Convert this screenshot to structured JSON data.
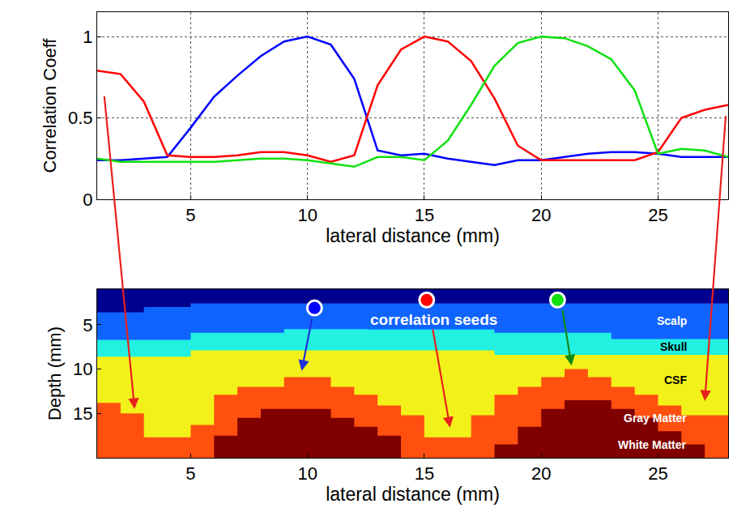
{
  "chart_data": [
    {
      "type": "line",
      "x": [
        1,
        2,
        3,
        4,
        5,
        6,
        7,
        8,
        9,
        10,
        11,
        12,
        13,
        14,
        15,
        16,
        17,
        18,
        19,
        20,
        21,
        22,
        23,
        24,
        25,
        26,
        27,
        28
      ],
      "series": [
        {
          "color": "#0000ff",
          "values": [
            0.24,
            0.24,
            0.25,
            0.26,
            0.44,
            0.63,
            0.76,
            0.88,
            0.97,
            1.0,
            0.95,
            0.74,
            0.3,
            0.27,
            0.28,
            0.25,
            0.23,
            0.21,
            0.24,
            0.24,
            0.26,
            0.28,
            0.29,
            0.29,
            0.28,
            0.26,
            0.26,
            0.26
          ]
        },
        {
          "color": "#ff0000",
          "values": [
            0.79,
            0.77,
            0.6,
            0.27,
            0.26,
            0.26,
            0.27,
            0.29,
            0.29,
            0.27,
            0.23,
            0.27,
            0.7,
            0.92,
            1.0,
            0.97,
            0.85,
            0.62,
            0.33,
            0.24,
            0.24,
            0.24,
            0.24,
            0.24,
            0.29,
            0.5,
            0.55,
            0.58
          ]
        },
        {
          "color": "#10e010",
          "values": [
            0.25,
            0.23,
            0.23,
            0.23,
            0.23,
            0.23,
            0.24,
            0.25,
            0.25,
            0.24,
            0.22,
            0.2,
            0.26,
            0.26,
            0.24,
            0.36,
            0.58,
            0.82,
            0.96,
            1.0,
            0.99,
            0.94,
            0.86,
            0.67,
            0.28,
            0.31,
            0.3,
            0.26
          ]
        }
      ],
      "xlabel": "lateral distance (mm)",
      "ylabel": "Correlation Coeff",
      "xlim": [
        1,
        28
      ],
      "ylim": [
        0,
        1.15
      ],
      "xticks": [
        5,
        10,
        15,
        20,
        25
      ],
      "yticks": [
        0,
        0.5,
        1
      ],
      "grid": true
    },
    {
      "type": "area",
      "x": [
        1,
        2,
        3,
        4,
        5,
        6,
        7,
        8,
        9,
        10,
        11,
        12,
        13,
        14,
        15,
        16,
        17,
        18,
        19,
        20,
        21,
        22,
        23,
        24,
        25,
        26,
        27,
        28
      ],
      "layers": [
        {
          "color": "#00008f",
          "bottom": [
            3.6,
            3.6,
            3.0,
            3.0,
            2.6,
            2.6,
            2.6,
            2.6,
            2.6,
            2.6,
            2.6,
            2.6,
            2.6,
            2.6,
            2.6,
            2.6,
            2.6,
            2.6,
            2.6,
            2.6,
            2.6,
            2.6,
            2.6,
            2.6,
            2.6,
            2.6,
            2.6,
            2.6
          ]
        },
        {
          "name": "Scalp",
          "color": "#0f64ff",
          "bottom": [
            6.7,
            6.7,
            6.7,
            6.7,
            5.9,
            5.9,
            5.9,
            5.9,
            5.5,
            5.5,
            5.5,
            5.5,
            5.5,
            5.5,
            5.5,
            5.5,
            5.5,
            5.9,
            5.9,
            5.9,
            5.9,
            5.9,
            6.6,
            6.6,
            6.6,
            6.6,
            6.6,
            6.6
          ]
        },
        {
          "name": "Skull",
          "color": "#22f0e0",
          "bottom": [
            8.6,
            8.6,
            8.6,
            8.6,
            7.9,
            7.9,
            7.9,
            7.9,
            7.9,
            7.9,
            7.9,
            7.9,
            7.9,
            7.9,
            7.9,
            7.9,
            7.9,
            8.4,
            8.4,
            8.4,
            8.4,
            8.4,
            8.4,
            8.4,
            8.4,
            8.4,
            8.4,
            8.4
          ]
        },
        {
          "name": "CSF",
          "color": "#f2f21a",
          "bottom": [
            13.8,
            15.0,
            17.7,
            17.7,
            16.3,
            12.9,
            12.0,
            12.0,
            10.9,
            10.9,
            12.0,
            12.9,
            14.1,
            15.2,
            17.7,
            17.7,
            15.2,
            12.9,
            12.0,
            10.9,
            10.0,
            10.9,
            12.0,
            12.9,
            14.1,
            15.2,
            15.2,
            15.2
          ]
        },
        {
          "name": "Gray Matter",
          "color": "#ff5010",
          "bottom": [
            20,
            20,
            20,
            20,
            20,
            17.5,
            15.5,
            14.5,
            14.5,
            14.5,
            15.5,
            16.5,
            17.5,
            20,
            20,
            20,
            20,
            18.5,
            16.5,
            14.5,
            13.5,
            13.5,
            14.5,
            15.5,
            17.0,
            18.5,
            20,
            20
          ]
        },
        {
          "name": "White Matter",
          "color": "#800000",
          "bottom": [
            20,
            20,
            20,
            20,
            20,
            20,
            20,
            20,
            20,
            20,
            20,
            20,
            20,
            20,
            20,
            20,
            20,
            20,
            20,
            20,
            20,
            20,
            20,
            20,
            20,
            20,
            20,
            20
          ]
        }
      ],
      "seeds": {
        "x": [
          10.3,
          15.1,
          20.7
        ],
        "y": [
          3.1,
          2.2,
          2.2
        ],
        "colors": [
          "#0000ff",
          "#ff0000",
          "#10e010"
        ]
      },
      "annotations": [
        {
          "text": "correlation seeds"
        }
      ],
      "xlabel": "lateral distance (mm)",
      "ylabel": "Depth (mm)",
      "xlim": [
        1,
        28
      ],
      "ylim": [
        20,
        1
      ],
      "xticks": [
        5,
        10,
        15,
        20,
        25
      ],
      "yticks": [
        5,
        10,
        15
      ],
      "grid": false
    }
  ],
  "arrows": [
    {
      "from": {
        "chart": 0,
        "x": 1.3,
        "y": 0.64
      },
      "to": {
        "chart": 1,
        "x": 2.6,
        "y": 14.5
      },
      "color": "#e8201c"
    },
    {
      "from": {
        "chart": 0,
        "x": 27.9,
        "y": 0.52
      },
      "to": {
        "chart": 1,
        "x": 27.0,
        "y": 13.6
      },
      "color": "#e8201c"
    },
    {
      "from": {
        "chart": 1,
        "x": 10.2,
        "y": 4.2
      },
      "to": {
        "chart": 1,
        "x": 9.75,
        "y": 10.2
      },
      "color": "#1c2fd8"
    },
    {
      "from": {
        "chart": 1,
        "x": 15.2,
        "y": 3.1
      },
      "to": {
        "chart": 1,
        "x": 16.1,
        "y": 16.6
      },
      "color": "#e8201c"
    },
    {
      "from": {
        "chart": 1,
        "x": 20.9,
        "y": 3.2
      },
      "to": {
        "chart": 1,
        "x": 21.3,
        "y": 9.6
      },
      "color": "#138a13"
    }
  ]
}
